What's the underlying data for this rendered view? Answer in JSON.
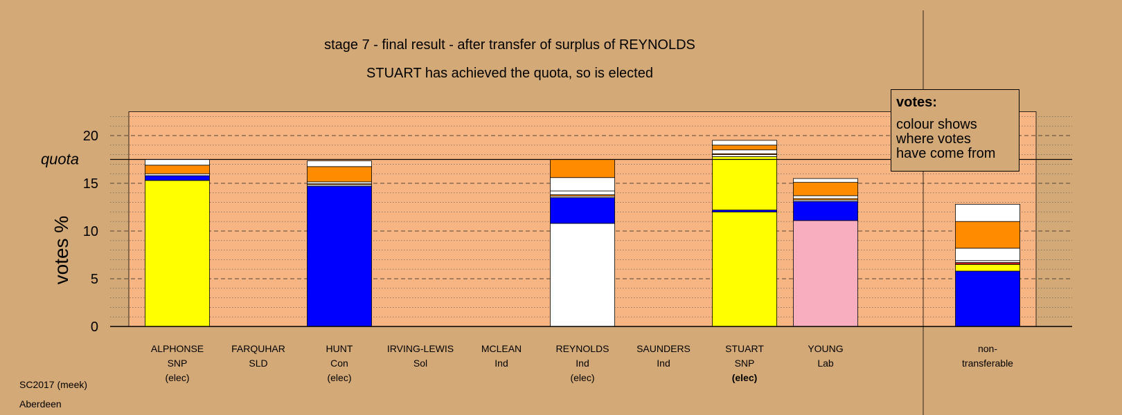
{
  "title": "stage 7 - final result - after transfer of surplus of REYNOLDS",
  "subtitle": "STUART has achieved the quota, so is elected",
  "source": "SC2017 (meek)",
  "place": "Aberdeen",
  "legend": {
    "title": "votes:",
    "lines": [
      "colour shows",
      "where votes",
      "have come from"
    ]
  },
  "colors": {
    "background": "#d4a978",
    "plot": "#f6b582",
    "snp": "#ffff00",
    "con": "#0000ff",
    "lab": "#f9aec0",
    "ind": "#ffffff",
    "other": "#ff8c00",
    "sol": "#c41a1a"
  },
  "chart_data": {
    "type": "bar",
    "stacked": true,
    "ylabel": "votes %",
    "ylim": [
      0,
      22.5
    ],
    "yticks": [
      0,
      5,
      10,
      15,
      20
    ],
    "quota": 17.5,
    "quota_label": "quota",
    "grid": true,
    "categories": [
      {
        "name": "ALPHONSE",
        "party": "SNP",
        "status": "(elec)",
        "status_bold": false,
        "segments": [
          {
            "color": "snp",
            "value": 15.3
          },
          {
            "color": "con",
            "value": 0.5
          },
          {
            "color": "ind",
            "value": 0.2
          },
          {
            "color": "other",
            "value": 0.9
          },
          {
            "color": "ind",
            "value": 0.6
          }
        ]
      },
      {
        "name": "FARQUHAR",
        "party": "SLD",
        "status": "",
        "status_bold": false,
        "segments": []
      },
      {
        "name": "HUNT",
        "party": "Con",
        "status": "(elec)",
        "status_bold": false,
        "segments": [
          {
            "color": "con",
            "value": 14.7
          },
          {
            "color": "ind",
            "value": 0.15
          },
          {
            "color": "other",
            "value": 0.1
          },
          {
            "color": "ind",
            "value": 0.2
          },
          {
            "color": "other",
            "value": 1.6
          },
          {
            "color": "ind",
            "value": 0.6
          }
        ]
      },
      {
        "name": "IRVING-LEWIS",
        "party": "Sol",
        "status": "",
        "status_bold": false,
        "segments": []
      },
      {
        "name": "MCLEAN",
        "party": "Ind",
        "status": "",
        "status_bold": false,
        "segments": []
      },
      {
        "name": "REYNOLDS",
        "party": "Ind",
        "status": "(elec)",
        "status_bold": false,
        "segments": [
          {
            "color": "ind",
            "value": 10.8
          },
          {
            "color": "con",
            "value": 2.7
          },
          {
            "color": "ind",
            "value": 0.15
          },
          {
            "color": "other",
            "value": 0.15
          },
          {
            "color": "ind",
            "value": 0.4
          },
          {
            "color": "ind",
            "value": 1.4
          },
          {
            "color": "other",
            "value": 1.9
          }
        ]
      },
      {
        "name": "SAUNDERS",
        "party": "Ind",
        "status": "",
        "status_bold": false,
        "segments": []
      },
      {
        "name": "STUART",
        "party": "SNP",
        "status": "(elec)",
        "status_bold": true,
        "segments": [
          {
            "color": "snp",
            "value": 12.0
          },
          {
            "color": "con",
            "value": 0.2
          },
          {
            "color": "snp",
            "value": 5.6
          },
          {
            "color": "ind",
            "value": 0.2
          },
          {
            "color": "other",
            "value": 0.1
          },
          {
            "color": "ind",
            "value": 0.4
          },
          {
            "color": "other",
            "value": 0.5
          },
          {
            "color": "ind",
            "value": 0.5
          }
        ]
      },
      {
        "name": "YOUNG",
        "party": "Lab",
        "status": "",
        "status_bold": false,
        "segments": [
          {
            "color": "lab",
            "value": 11.1
          },
          {
            "color": "con",
            "value": 2.0
          },
          {
            "color": "ind",
            "value": 0.15
          },
          {
            "color": "other",
            "value": 0.15
          },
          {
            "color": "ind",
            "value": 0.3
          },
          {
            "color": "other",
            "value": 1.4
          },
          {
            "color": "ind",
            "value": 0.4
          }
        ]
      },
      {
        "name": "non-",
        "party": "transferable",
        "status": "",
        "status_bold": false,
        "separated": true,
        "segments": [
          {
            "color": "con",
            "value": 5.8
          },
          {
            "color": "snp",
            "value": 0.7
          },
          {
            "color": "sol",
            "value": 0.2
          },
          {
            "color": "ind",
            "value": 0.2
          },
          {
            "color": "ind",
            "value": 1.3
          },
          {
            "color": "other",
            "value": 2.8
          },
          {
            "color": "ind",
            "value": 1.8
          }
        ]
      }
    ]
  }
}
